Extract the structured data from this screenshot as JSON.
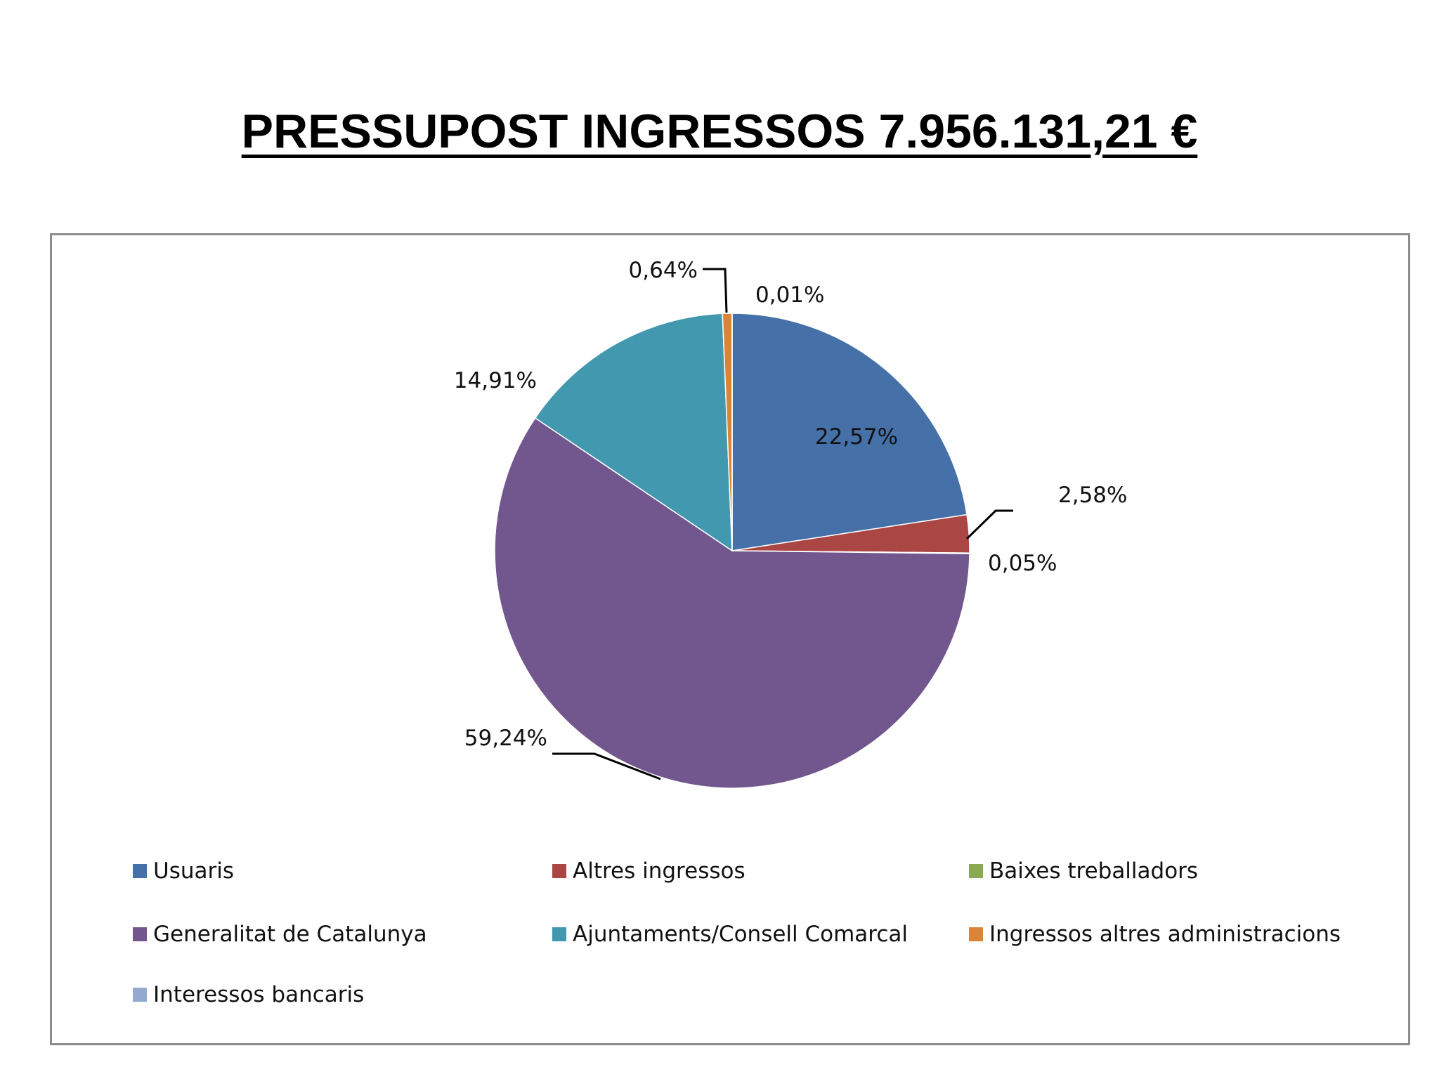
{
  "title": "PRESSUPOST INGRESSOS 7.956.131,21 €",
  "chart_data": {
    "type": "pie",
    "title": "",
    "slices": [
      {
        "name": "Usuaris",
        "value": 22.57,
        "label": "22,57%",
        "color": "#4670a8"
      },
      {
        "name": "Altres ingressos",
        "value": 2.58,
        "label": "2,58%",
        "color": "#aa4644"
      },
      {
        "name": "Baixes treballadors",
        "value": 0.05,
        "label": "0,05%",
        "color": "#8ba952"
      },
      {
        "name": "Generalitat de Catalunya",
        "value": 59.24,
        "label": "59,24%",
        "color": "#72578f"
      },
      {
        "name": "Ajuntaments/Consell Comarcal",
        "value": 14.91,
        "label": "14,91%",
        "color": "#4198af"
      },
      {
        "name": "Ingressos altres administracions",
        "value": 0.64,
        "label": "0,64%",
        "color": "#db8438"
      },
      {
        "name": "Interessos bancaris",
        "value": 0.01,
        "label": "0,01%",
        "color": "#93a9cf"
      }
    ],
    "legend_position": "bottom"
  }
}
